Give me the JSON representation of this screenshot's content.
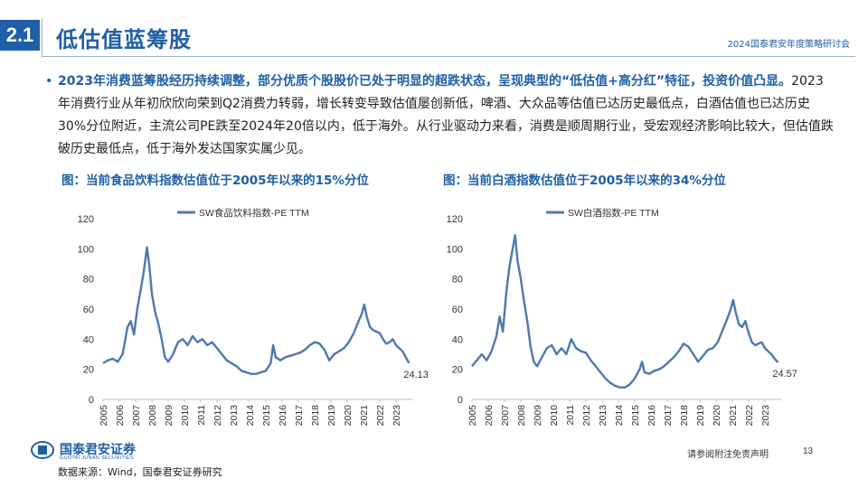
{
  "header": {
    "section_no": "2.1",
    "title": "低估值蓝筹股",
    "event": "2024国泰君安年度策略研讨会"
  },
  "bullet": {
    "bold_text": "2023年消费蓝筹股经历持续调整，部分优质个股股价已处于明显的超跌状态，呈现典型的“低估值+高分红”特征，投资价值凸显。",
    "body_text": "2023年消费行业从年初欣欣向荣到Q2消费力转弱，增长转变导致估值屡创新低，啤酒、大众品等估值已达历史最低点，白酒估值也已达历史30%分位附近，主流公司PE跌至2024年20倍以内，低于海外。从行业驱动力来看，消费是顺周期行业，受宏观经济影响比较大，但估值跌破历史最低点，低于海外发达国家实属少见。"
  },
  "captions": {
    "left": "图：当前食品饮料指数估值位于2005年以来的15%分位",
    "right": "图：当前白酒指数估值位于2005年以来的34%分位"
  },
  "footer": {
    "logo_cn": "国泰君安证券",
    "logo_en": "GUOTAI JUNAN SECURITIES",
    "disclaimer": "请参阅附注免责声明",
    "page": "13",
    "source": "数据来源：Wind，国泰君安证券研究"
  },
  "chart_data": [
    {
      "type": "line",
      "series": [
        {
          "name": "SW食品饮料指数-PE TTM",
          "color": "#4f78b0",
          "x": [
            2005.0,
            2005.3,
            2005.6,
            2005.9,
            2006.2,
            2006.5,
            2006.7,
            2006.9,
            2007.1,
            2007.3,
            2007.5,
            2007.7,
            2007.85,
            2008.0,
            2008.2,
            2008.4,
            2008.6,
            2008.8,
            2009.0,
            2009.3,
            2009.6,
            2009.9,
            2010.2,
            2010.5,
            2010.8,
            2011.1,
            2011.4,
            2011.7,
            2012.0,
            2012.3,
            2012.6,
            2012.9,
            2013.2,
            2013.5,
            2013.8,
            2014.1,
            2014.4,
            2014.7,
            2015.0,
            2015.3,
            2015.45,
            2015.6,
            2015.9,
            2016.2,
            2016.5,
            2016.8,
            2017.1,
            2017.4,
            2017.7,
            2018.0,
            2018.3,
            2018.6,
            2018.9,
            2019.2,
            2019.5,
            2019.8,
            2020.1,
            2020.4,
            2020.7,
            2020.9,
            2021.05,
            2021.2,
            2021.4,
            2021.6,
            2021.8,
            2022.0,
            2022.2,
            2022.4,
            2022.6,
            2022.8,
            2023.0,
            2023.2,
            2023.4,
            2023.6,
            2023.8
          ],
          "y": [
            24,
            26,
            27,
            25,
            30,
            48,
            52,
            43,
            60,
            72,
            85,
            101,
            88,
            70,
            58,
            50,
            40,
            28,
            25,
            30,
            38,
            40,
            36,
            42,
            38,
            40,
            36,
            38,
            34,
            30,
            26,
            24,
            22,
            19,
            18,
            17,
            17,
            18,
            19,
            24,
            36,
            28,
            26,
            28,
            29,
            30,
            31,
            33,
            36,
            38,
            37,
            33,
            26,
            30,
            32,
            34,
            38,
            44,
            52,
            57,
            63,
            55,
            48,
            46,
            45,
            44,
            40,
            37,
            38,
            40,
            36,
            34,
            32,
            28,
            24.13
          ]
        }
      ],
      "ylim": [
        0,
        120
      ],
      "yticks": [
        0,
        20,
        40,
        60,
        80,
        100,
        120
      ],
      "xticks": [
        "2005",
        "2006",
        "2007",
        "2008",
        "2009",
        "2010",
        "2011",
        "2012",
        "2013",
        "2014",
        "2015",
        "2016",
        "2017",
        "2018",
        "2019",
        "2020",
        "2021",
        "2022",
        "2023"
      ],
      "last_label": "24.13",
      "legend": "top"
    },
    {
      "type": "line",
      "series": [
        {
          "name": "SW白酒指数-PE TTM",
          "color": "#4f78b0",
          "x": [
            2005.0,
            2005.3,
            2005.6,
            2005.9,
            2006.2,
            2006.5,
            2006.7,
            2006.9,
            2007.1,
            2007.3,
            2007.5,
            2007.65,
            2007.8,
            2008.0,
            2008.2,
            2008.4,
            2008.6,
            2008.8,
            2009.0,
            2009.3,
            2009.6,
            2009.9,
            2010.2,
            2010.5,
            2010.8,
            2011.1,
            2011.4,
            2011.7,
            2012.0,
            2012.3,
            2012.6,
            2012.9,
            2013.2,
            2013.5,
            2013.8,
            2014.1,
            2014.4,
            2014.7,
            2015.0,
            2015.3,
            2015.45,
            2015.6,
            2015.9,
            2016.2,
            2016.5,
            2016.8,
            2017.1,
            2017.4,
            2017.7,
            2018.0,
            2018.3,
            2018.6,
            2018.9,
            2019.2,
            2019.5,
            2019.8,
            2020.1,
            2020.4,
            2020.7,
            2020.9,
            2021.05,
            2021.2,
            2021.4,
            2021.6,
            2021.8,
            2022.0,
            2022.2,
            2022.4,
            2022.6,
            2022.8,
            2023.0,
            2023.2,
            2023.4,
            2023.6,
            2023.8
          ],
          "y": [
            22,
            26,
            30,
            26,
            32,
            42,
            55,
            45,
            70,
            88,
            100,
            109,
            92,
            80,
            65,
            52,
            35,
            25,
            22,
            28,
            34,
            36,
            30,
            34,
            30,
            40,
            34,
            32,
            31,
            26,
            22,
            18,
            14,
            11,
            9,
            8,
            8,
            10,
            14,
            20,
            25,
            18,
            17,
            19,
            20,
            22,
            25,
            28,
            32,
            37,
            35,
            30,
            25,
            29,
            33,
            34,
            38,
            46,
            54,
            60,
            66,
            58,
            50,
            48,
            52,
            44,
            38,
            36,
            37,
            38,
            34,
            32,
            30,
            27,
            24.57
          ]
        }
      ],
      "ylim": [
        0,
        120
      ],
      "yticks": [
        0,
        20,
        40,
        60,
        80,
        100,
        120
      ],
      "xticks": [
        "2005",
        "2006",
        "2007",
        "2008",
        "2009",
        "2010",
        "2011",
        "2012",
        "2013",
        "2014",
        "2015",
        "2016",
        "2017",
        "2018",
        "2019",
        "2020",
        "2021",
        "2022",
        "2023"
      ],
      "last_label": "24.57",
      "legend": "top"
    }
  ]
}
